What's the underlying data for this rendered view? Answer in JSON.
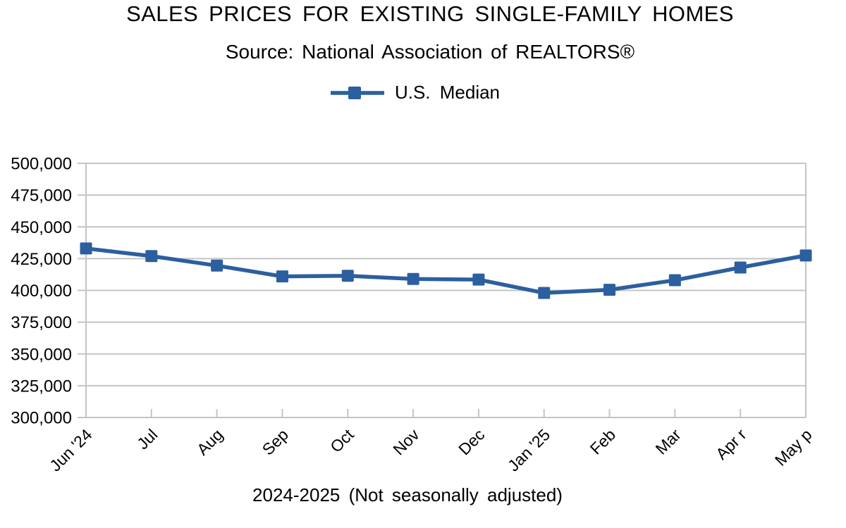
{
  "page": {
    "background": "#ffffff"
  },
  "chart_data": {
    "type": "line",
    "title": "SALES PRICES FOR EXISTING SINGLE-FAMILY HOMES",
    "subtitle": "Source: National Association of REALTORS®",
    "footer": "2024-2025 (Not seasonally adjusted)",
    "legend": {
      "position": "top-center",
      "entries": [
        "U.S. Median"
      ]
    },
    "categories": [
      "Jun '24",
      "Jul",
      "Aug",
      "Sep",
      "Oct",
      "Nov",
      "Dec",
      "Jan '25",
      "Feb",
      "Mar",
      "Apr r",
      "May p"
    ],
    "series": [
      {
        "name": "U.S. Median",
        "color": "#2b5f9f",
        "marker": "square",
        "values": [
          433000,
          427000,
          419500,
          411000,
          411500,
          409000,
          408500,
          398000,
          400500,
          408000,
          418000,
          427500
        ]
      }
    ],
    "ylim": [
      300000,
      500000
    ],
    "ytick_step": 25000,
    "y_tick_labels": [
      "300,000",
      "325,000",
      "350,000",
      "375,000",
      "400,000",
      "425,000",
      "450,000",
      "475,000",
      "500,000"
    ],
    "grid": "horizontal-only",
    "axis_color": "#c4c4c4",
    "text_color": "#000000"
  }
}
